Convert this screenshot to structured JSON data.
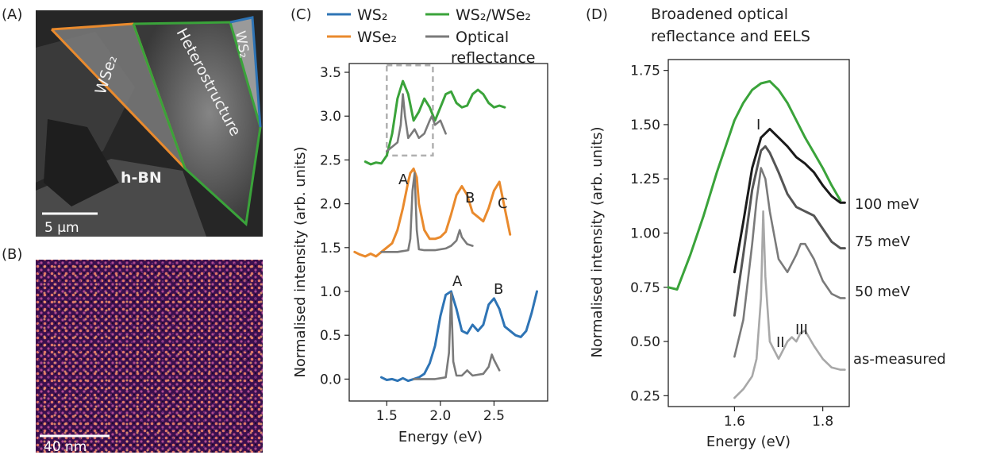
{
  "panels": {
    "a": {
      "label": "(A)",
      "regions": [
        "WSe₂",
        "Heterostructure",
        "WS₂",
        "h-BN"
      ],
      "scalebar": "5 µm",
      "outline_colors": {
        "wse2": "#e98a2d",
        "heterostructure": "#3aa33a",
        "ws2": "#2e74b5"
      }
    },
    "b": {
      "label": "(B)",
      "scalebar": "40 nm"
    },
    "c": {
      "label": "(C)",
      "peak_labels": [
        "A",
        "B",
        "C",
        "A",
        "B"
      ]
    },
    "d": {
      "label": "(D)",
      "title_line1": "Broadened optical",
      "title_line2": "reflectance and EELS",
      "peak_labels": [
        "I",
        "II",
        "III"
      ],
      "curve_labels": [
        "100 meV",
        "75 meV",
        "50 meV",
        "as-measured"
      ]
    }
  },
  "chart_data": [
    {
      "type": "line",
      "xlabel": "Energy (eV)",
      "ylabel": "Normalised intensity (arb. units)",
      "xlim": [
        1.15,
        3.0
      ],
      "ylim": [
        -0.25,
        3.6
      ],
      "xticks": [
        "1.5",
        "2.0",
        "2.5"
      ],
      "yticks": [
        "0.0",
        "0.5",
        "1.0",
        "1.5",
        "2.0",
        "2.5",
        "3.0",
        "3.5"
      ],
      "legend": [
        "WS₂",
        "WSe₂",
        "WS₂/WSe₂",
        "Optical",
        "reflectance"
      ],
      "series": [
        {
          "name": "WS₂",
          "color": "#2e74b5",
          "x": [
            1.45,
            1.5,
            1.55,
            1.6,
            1.65,
            1.7,
            1.75,
            1.8,
            1.85,
            1.9,
            1.95,
            2.0,
            2.05,
            2.1,
            2.15,
            2.2,
            2.25,
            2.3,
            2.35,
            2.4,
            2.45,
            2.5,
            2.55,
            2.6,
            2.65,
            2.7,
            2.75,
            2.8,
            2.85,
            2.9
          ],
          "y": [
            0.02,
            -0.01,
            0.0,
            -0.02,
            0.01,
            -0.02,
            0.0,
            0.02,
            0.06,
            0.18,
            0.38,
            0.72,
            0.96,
            1.0,
            0.8,
            0.55,
            0.52,
            0.62,
            0.55,
            0.62,
            0.85,
            0.92,
            0.8,
            0.6,
            0.55,
            0.5,
            0.48,
            0.55,
            0.75,
            1.0
          ]
        },
        {
          "name": "WSe₂",
          "color": "#e98a2d",
          "x": [
            1.2,
            1.25,
            1.3,
            1.35,
            1.4,
            1.45,
            1.5,
            1.55,
            1.6,
            1.65,
            1.7,
            1.72,
            1.75,
            1.78,
            1.8,
            1.85,
            1.9,
            1.95,
            2.0,
            2.05,
            2.1,
            2.15,
            2.2,
            2.25,
            2.3,
            2.35,
            2.4,
            2.45,
            2.5,
            2.55,
            2.6,
            2.65
          ],
          "y": [
            1.45,
            1.42,
            1.4,
            1.43,
            1.4,
            1.45,
            1.5,
            1.55,
            1.7,
            1.95,
            2.25,
            2.35,
            2.4,
            2.3,
            2.0,
            1.7,
            1.6,
            1.6,
            1.62,
            1.68,
            1.88,
            2.1,
            2.2,
            2.1,
            1.9,
            1.85,
            1.8,
            1.95,
            2.15,
            2.25,
            1.95,
            1.65
          ]
        },
        {
          "name": "WS₂/WSe₂",
          "color": "#3aa33a",
          "x": [
            1.3,
            1.35,
            1.4,
            1.45,
            1.5,
            1.55,
            1.6,
            1.65,
            1.7,
            1.75,
            1.8,
            1.85,
            1.9,
            1.95,
            2.0,
            2.05,
            2.1,
            2.15,
            2.2,
            2.25,
            2.3,
            2.35,
            2.4,
            2.45,
            2.5,
            2.55,
            2.6
          ],
          "y": [
            2.48,
            2.45,
            2.47,
            2.46,
            2.55,
            2.8,
            3.2,
            3.4,
            3.25,
            2.95,
            3.05,
            3.2,
            3.1,
            2.95,
            3.1,
            3.25,
            3.28,
            3.15,
            3.1,
            3.12,
            3.25,
            3.3,
            3.25,
            3.15,
            3.1,
            3.12,
            3.1
          ]
        },
        {
          "name": "Optical reflectance",
          "color": "#7a7a7a",
          "x": [
            1.75,
            1.8,
            1.85,
            1.9,
            1.95,
            2.0,
            2.05,
            2.08,
            2.1,
            2.12,
            2.15,
            2.2,
            2.25,
            2.3,
            2.35,
            2.4,
            2.45,
            2.48,
            2.5,
            2.55
          ],
          "y": [
            0.0,
            0.0,
            0.0,
            0.0,
            0.0,
            0.01,
            0.02,
            0.3,
            0.98,
            0.2,
            0.04,
            0.04,
            0.1,
            0.04,
            0.05,
            0.06,
            0.14,
            0.28,
            0.22,
            0.1
          ]
        },
        {
          "name": "Optical reflectance (WSe₂)",
          "color": "#7a7a7a",
          "x": [
            1.45,
            1.5,
            1.55,
            1.6,
            1.65,
            1.7,
            1.72,
            1.74,
            1.76,
            1.78,
            1.8,
            1.85,
            1.9,
            1.95,
            2.0,
            2.05,
            2.1,
            2.15,
            2.18,
            2.2,
            2.25,
            2.3
          ],
          "y": [
            1.45,
            1.45,
            1.45,
            1.45,
            1.46,
            1.47,
            1.6,
            2.15,
            2.35,
            1.7,
            1.48,
            1.47,
            1.47,
            1.47,
            1.48,
            1.49,
            1.52,
            1.58,
            1.7,
            1.62,
            1.54,
            1.52
          ]
        },
        {
          "name": "Optical reflectance (heterostructure)",
          "color": "#7a7a7a",
          "x": [
            1.5,
            1.55,
            1.6,
            1.63,
            1.65,
            1.67,
            1.7,
            1.73,
            1.76,
            1.8,
            1.85,
            1.9,
            1.92,
            1.95,
            2.0,
            2.05
          ],
          "y": [
            2.6,
            2.65,
            2.7,
            2.9,
            3.25,
            3.0,
            2.75,
            2.8,
            2.85,
            2.75,
            2.8,
            2.95,
            3.0,
            2.9,
            2.95,
            2.8
          ]
        }
      ],
      "highlight_box": {
        "x": [
          1.5,
          1.93
        ],
        "y": [
          2.55,
          3.58
        ]
      }
    },
    {
      "type": "line",
      "xlabel": "Energy (eV)",
      "ylabel": "Normalised intensity (arb. units)",
      "xlim": [
        1.45,
        1.86
      ],
      "ylim": [
        0.2,
        1.8
      ],
      "xticks": [
        "1.6",
        "1.8"
      ],
      "yticks": [
        "0.25",
        "0.50",
        "0.75",
        "1.00",
        "1.25",
        "1.50",
        "1.75"
      ],
      "series": [
        {
          "name": "EELS",
          "color": "#3aa33a",
          "x": [
            1.45,
            1.47,
            1.5,
            1.53,
            1.56,
            1.58,
            1.6,
            1.62,
            1.64,
            1.66,
            1.68,
            1.7,
            1.72,
            1.74,
            1.76,
            1.78,
            1.8,
            1.82,
            1.84
          ],
          "y": [
            0.75,
            0.74,
            0.9,
            1.08,
            1.28,
            1.4,
            1.52,
            1.6,
            1.66,
            1.69,
            1.7,
            1.66,
            1.6,
            1.52,
            1.44,
            1.37,
            1.3,
            1.22,
            1.15
          ]
        },
        {
          "name": "100 meV",
          "color": "#1a1a1a",
          "x": [
            1.6,
            1.62,
            1.64,
            1.66,
            1.68,
            1.7,
            1.72,
            1.74,
            1.76,
            1.78,
            1.8,
            1.82,
            1.84,
            1.85
          ],
          "y": [
            0.82,
            1.05,
            1.3,
            1.44,
            1.48,
            1.44,
            1.4,
            1.35,
            1.32,
            1.28,
            1.22,
            1.17,
            1.14,
            1.14
          ]
        },
        {
          "name": "75 meV",
          "color": "#555555",
          "x": [
            1.6,
            1.62,
            1.64,
            1.66,
            1.67,
            1.68,
            1.7,
            1.72,
            1.74,
            1.76,
            1.78,
            1.8,
            1.82,
            1.84,
            1.85
          ],
          "y": [
            0.62,
            0.9,
            1.2,
            1.38,
            1.4,
            1.37,
            1.28,
            1.18,
            1.12,
            1.1,
            1.08,
            1.02,
            0.96,
            0.93,
            0.93
          ]
        },
        {
          "name": "50 meV",
          "color": "#7a7a7a",
          "x": [
            1.6,
            1.62,
            1.64,
            1.65,
            1.66,
            1.67,
            1.68,
            1.7,
            1.72,
            1.74,
            1.75,
            1.76,
            1.78,
            1.8,
            1.82,
            1.84,
            1.85
          ],
          "y": [
            0.43,
            0.6,
            0.95,
            1.15,
            1.3,
            1.25,
            1.1,
            0.88,
            0.82,
            0.9,
            0.95,
            0.95,
            0.88,
            0.78,
            0.72,
            0.7,
            0.7
          ]
        },
        {
          "name": "as-measured",
          "color": "#a8a8a8",
          "x": [
            1.6,
            1.62,
            1.64,
            1.65,
            1.66,
            1.665,
            1.67,
            1.68,
            1.7,
            1.72,
            1.73,
            1.74,
            1.75,
            1.76,
            1.78,
            1.8,
            1.82,
            1.84,
            1.85
          ],
          "y": [
            0.24,
            0.28,
            0.34,
            0.42,
            0.7,
            1.1,
            0.8,
            0.5,
            0.42,
            0.5,
            0.52,
            0.5,
            0.54,
            0.55,
            0.48,
            0.42,
            0.38,
            0.37,
            0.37
          ]
        }
      ]
    }
  ]
}
